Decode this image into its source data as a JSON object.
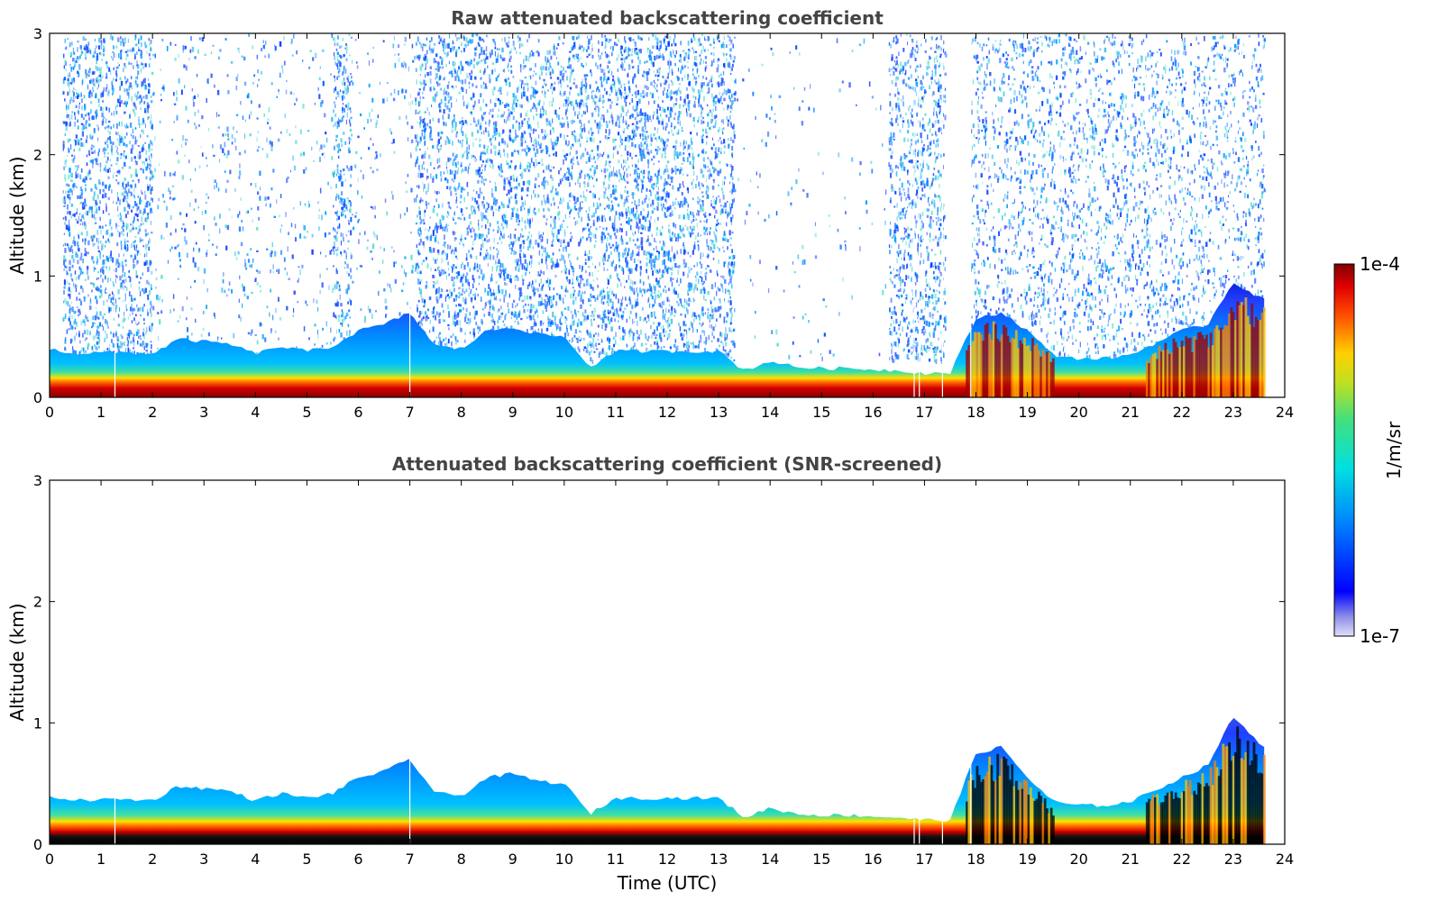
{
  "chart_data": [
    {
      "type": "heatmap",
      "title": "Raw attenuated backscattering coefficient",
      "xlabel": "",
      "ylabel": "Altitude (km)",
      "xlim": [
        0,
        24
      ],
      "ylim": [
        0,
        3
      ],
      "x_ticks": [
        "0",
        "1",
        "2",
        "3",
        "4",
        "5",
        "6",
        "7",
        "8",
        "9",
        "10",
        "11",
        "12",
        "13",
        "14",
        "15",
        "16",
        "17",
        "18",
        "19",
        "20",
        "21",
        "22",
        "23",
        "24"
      ],
      "y_ticks": [
        "0",
        "1",
        "2",
        "3"
      ],
      "data_end_hour": 23.6,
      "noise_band_top_km": 3.0,
      "boundary_layer": {
        "time_utc": [
          0,
          0.5,
          1,
          1.5,
          2,
          2.5,
          3,
          3.5,
          4,
          4.5,
          5,
          5.5,
          6,
          6.5,
          7,
          7.5,
          8,
          8.5,
          9,
          9.5,
          10,
          10.5,
          11,
          11.5,
          12,
          12.5,
          13,
          13.5,
          14,
          14.5,
          15,
          15.5,
          16,
          16.5,
          17,
          17.5,
          18,
          18.5,
          19,
          19.5,
          20,
          20.5,
          21,
          21.5,
          22,
          22.5,
          23,
          23.6
        ],
        "top_km": [
          0.4,
          0.36,
          0.37,
          0.37,
          0.36,
          0.48,
          0.46,
          0.44,
          0.36,
          0.42,
          0.38,
          0.42,
          0.55,
          0.6,
          0.7,
          0.42,
          0.4,
          0.55,
          0.58,
          0.52,
          0.5,
          0.25,
          0.38,
          0.38,
          0.38,
          0.38,
          0.38,
          0.22,
          0.3,
          0.25,
          0.24,
          0.24,
          0.23,
          0.22,
          0.2,
          0.2,
          0.65,
          0.7,
          0.55,
          0.35,
          0.32,
          0.32,
          0.35,
          0.45,
          0.55,
          0.6,
          0.95,
          0.8
        ]
      },
      "colorbar": {
        "label": "1/m/sr",
        "min_label": "1e-7",
        "max_label": "1e-4",
        "scale": "log",
        "colormap": "jet"
      }
    },
    {
      "type": "heatmap",
      "title": "Attenuated backscattering coefficient (SNR-screened)",
      "xlabel": "Time (UTC)",
      "ylabel": "Altitude (km)",
      "xlim": [
        0,
        24
      ],
      "ylim": [
        0,
        3
      ],
      "x_ticks": [
        "0",
        "1",
        "2",
        "3",
        "4",
        "5",
        "6",
        "7",
        "8",
        "9",
        "10",
        "11",
        "12",
        "13",
        "14",
        "15",
        "16",
        "17",
        "18",
        "19",
        "20",
        "21",
        "22",
        "23",
        "24"
      ],
      "y_ticks": [
        "0",
        "1",
        "2",
        "3"
      ],
      "data_end_hour": 23.6,
      "boundary_layer": {
        "time_utc": [
          0,
          0.5,
          1,
          1.5,
          2,
          2.5,
          3,
          3.5,
          4,
          4.5,
          5,
          5.5,
          6,
          6.5,
          7,
          7.5,
          8,
          8.5,
          9,
          9.5,
          10,
          10.5,
          11,
          11.5,
          12,
          12.5,
          13,
          13.5,
          14,
          14.5,
          15,
          15.5,
          16,
          16.5,
          17,
          17.5,
          18,
          18.5,
          19,
          19.5,
          20,
          20.5,
          21,
          21.5,
          22,
          22.5,
          23,
          23.6
        ],
        "top_km": [
          0.4,
          0.36,
          0.37,
          0.37,
          0.36,
          0.48,
          0.46,
          0.44,
          0.36,
          0.42,
          0.38,
          0.42,
          0.55,
          0.6,
          0.7,
          0.42,
          0.4,
          0.55,
          0.58,
          0.52,
          0.5,
          0.25,
          0.38,
          0.38,
          0.38,
          0.38,
          0.38,
          0.22,
          0.3,
          0.25,
          0.24,
          0.24,
          0.23,
          0.22,
          0.2,
          0.2,
          0.75,
          0.8,
          0.55,
          0.35,
          0.32,
          0.32,
          0.35,
          0.45,
          0.55,
          0.65,
          1.05,
          0.8
        ]
      },
      "colorbar": {
        "label": "1/m/sr",
        "min_label": "1e-7",
        "max_label": "1e-4",
        "scale": "log",
        "colormap": "jet"
      }
    }
  ]
}
